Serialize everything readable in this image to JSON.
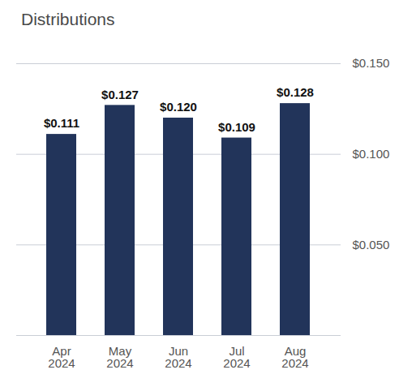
{
  "chart_data": {
    "type": "bar",
    "title": "Distributions",
    "categories": [
      "Apr 2024",
      "May 2024",
      "Jun 2024",
      "Jul 2024",
      "Aug 2024"
    ],
    "values": [
      0.111,
      0.127,
      0.12,
      0.109,
      0.128
    ],
    "value_labels": [
      "$0.111",
      "$0.127",
      "$0.120",
      "$0.109",
      "$0.128"
    ],
    "color": "#22345a",
    "ylim": [
      0,
      0.15
    ],
    "yticks": [
      {
        "value": 0.05,
        "label": "$0.050"
      },
      {
        "value": 0.1,
        "label": "$0.100"
      },
      {
        "value": 0.15,
        "label": "$0.150"
      }
    ],
    "grid": true,
    "data_labels": true
  }
}
